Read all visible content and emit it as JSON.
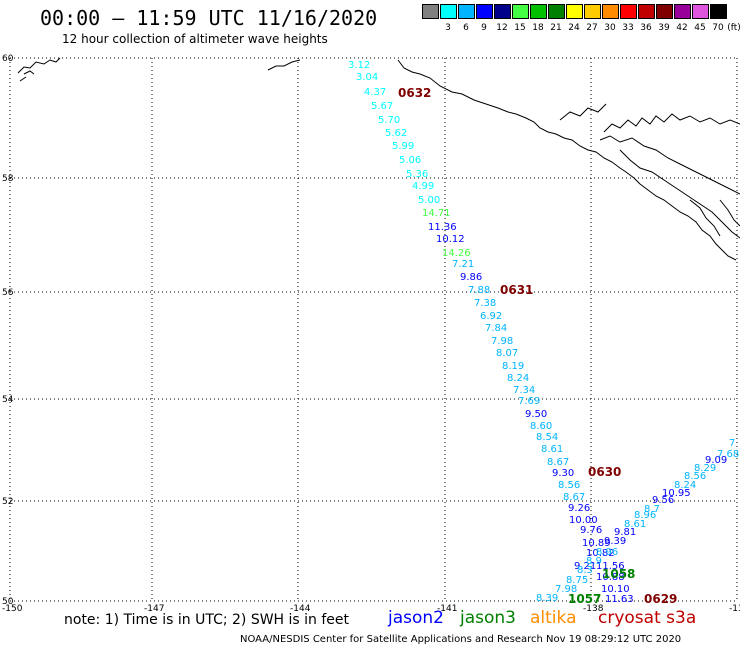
{
  "header": {
    "title": "00:00 – 11:59 UTC 11/16/2020",
    "subtitle": "12 hour collection of altimeter wave heights"
  },
  "color_scale": {
    "unit_label": "(ft)",
    "bins": [
      {
        "label": "",
        "color": "#808080"
      },
      {
        "label": "3",
        "color": "#00ffff"
      },
      {
        "label": "6",
        "color": "#00b4ff"
      },
      {
        "label": "9",
        "color": "#0000ff"
      },
      {
        "label": "12",
        "color": "#00008b"
      },
      {
        "label": "15",
        "color": "#44ff44"
      },
      {
        "label": "18",
        "color": "#00c000"
      },
      {
        "label": "21",
        "color": "#008000"
      },
      {
        "label": "24",
        "color": "#ffff00"
      },
      {
        "label": "27",
        "color": "#ffcc00"
      },
      {
        "label": "30",
        "color": "#ff8c00"
      },
      {
        "label": "33",
        "color": "#ff0000"
      },
      {
        "label": "36",
        "color": "#c00000"
      },
      {
        "label": "39",
        "color": "#800000"
      },
      {
        "label": "42",
        "color": "#990099"
      },
      {
        "label": "45",
        "color": "#dd55dd"
      },
      {
        "label": "70",
        "color": "#000000"
      }
    ]
  },
  "axes": {
    "lat_ticks": [
      "60",
      "58",
      "56",
      "54",
      "52",
      "50"
    ],
    "lon_ticks": [
      "-150",
      "-147",
      "-144",
      "-141",
      "-138",
      "-13"
    ]
  },
  "track_times": [
    {
      "label": "0632",
      "color": "#800000"
    },
    {
      "label": "0631",
      "color": "#800000"
    },
    {
      "label": "0630",
      "color": "#800000"
    },
    {
      "label": "0629",
      "color": "#800000"
    },
    {
      "label": "1057",
      "color": "#008000"
    },
    {
      "label": "1058",
      "color": "#008000"
    }
  ],
  "wave_heights_track1": [
    {
      "v": "3.12",
      "c": "#00ffff"
    },
    {
      "v": "3.04",
      "c": "#00ffff"
    },
    {
      "v": "4.37",
      "c": "#00ffff"
    },
    {
      "v": "5.67",
      "c": "#00ffff"
    },
    {
      "v": "5.70",
      "c": "#00ffff"
    },
    {
      "v": "5.62",
      "c": "#00ffff"
    },
    {
      "v": "5.99",
      "c": "#00ffff"
    },
    {
      "v": "5.06",
      "c": "#00ffff"
    },
    {
      "v": "5.36",
      "c": "#00ffff"
    },
    {
      "v": "4.99",
      "c": "#00ffff"
    },
    {
      "v": "5.00",
      "c": "#00ffff"
    },
    {
      "v": "14.71",
      "c": "#44ff44"
    },
    {
      "v": "11.36",
      "c": "#0000ff"
    },
    {
      "v": "10.12",
      "c": "#0000ff"
    },
    {
      "v": "14.26",
      "c": "#44ff44"
    },
    {
      "v": "7.21",
      "c": "#00b4ff"
    },
    {
      "v": "9.86",
      "c": "#0000ff"
    },
    {
      "v": "7.88",
      "c": "#00b4ff"
    },
    {
      "v": "7.38",
      "c": "#00b4ff"
    },
    {
      "v": "6.92",
      "c": "#00b4ff"
    },
    {
      "v": "7.84",
      "c": "#00b4ff"
    },
    {
      "v": "7.98",
      "c": "#00b4ff"
    },
    {
      "v": "8.07",
      "c": "#00b4ff"
    },
    {
      "v": "8.19",
      "c": "#00b4ff"
    },
    {
      "v": "8.24",
      "c": "#00b4ff"
    },
    {
      "v": "7.34",
      "c": "#00b4ff"
    },
    {
      "v": "7.69",
      "c": "#00b4ff"
    },
    {
      "v": "9.50",
      "c": "#0000ff"
    },
    {
      "v": "8.60",
      "c": "#00b4ff"
    },
    {
      "v": "8.54",
      "c": "#00b4ff"
    },
    {
      "v": "8.61",
      "c": "#00b4ff"
    },
    {
      "v": "8.67",
      "c": "#00b4ff"
    },
    {
      "v": "9.30",
      "c": "#0000ff"
    },
    {
      "v": "8.56",
      "c": "#00b4ff"
    },
    {
      "v": "8.67",
      "c": "#00b4ff"
    },
    {
      "v": "9.26",
      "c": "#0000ff"
    },
    {
      "v": "10.00",
      "c": "#0000ff"
    },
    {
      "v": "9.76",
      "c": "#0000ff"
    },
    {
      "v": "10.89",
      "c": "#0000ff"
    },
    {
      "v": "10.82",
      "c": "#0000ff"
    },
    {
      "v": "9.21",
      "c": "#0000ff"
    },
    {
      "v": "11.56",
      "c": "#0000ff"
    },
    {
      "v": "10.88",
      "c": "#0000ff"
    },
    {
      "v": "10.10",
      "c": "#0000ff"
    },
    {
      "v": "11.63",
      "c": "#0000ff"
    }
  ],
  "wave_heights_track2": [
    {
      "v": "7",
      "c": "#00b4ff"
    },
    {
      "v": "7.68",
      "c": "#00b4ff"
    },
    {
      "v": "9.09",
      "c": "#0000ff"
    },
    {
      "v": "8.29",
      "c": "#00b4ff"
    },
    {
      "v": "8.56",
      "c": "#00b4ff"
    },
    {
      "v": "8.24",
      "c": "#00b4ff"
    },
    {
      "v": "10.95",
      "c": "#0000ff"
    },
    {
      "v": "9.56",
      "c": "#0000ff"
    },
    {
      "v": "8.7",
      "c": "#00b4ff"
    },
    {
      "v": "8.96",
      "c": "#00b4ff"
    },
    {
      "v": "8.61",
      "c": "#00b4ff"
    },
    {
      "v": "9.81",
      "c": "#0000ff"
    },
    {
      "v": "9.39",
      "c": "#0000ff"
    },
    {
      "v": "8.96",
      "c": "#00b4ff"
    },
    {
      "v": "8.9",
      "c": "#00b4ff"
    },
    {
      "v": "8.3",
      "c": "#00b4ff"
    },
    {
      "v": "8.75",
      "c": "#00b4ff"
    },
    {
      "v": "7.98",
      "c": "#00b4ff"
    },
    {
      "v": "8.39",
      "c": "#00b4ff"
    }
  ],
  "note": "note: 1) Time is in UTC; 2) SWH is in feet",
  "satellites": [
    {
      "name": "jason2",
      "color": "#0000ff"
    },
    {
      "name": "jason3",
      "color": "#008000"
    },
    {
      "name": "altika",
      "color": "#ff8c00"
    },
    {
      "name": "cryosat s3a",
      "color": "#c00000"
    }
  ],
  "footer": "NOAA/NESDIS Center for Satellite Applications and Research    Nov 19 08:29:12 UTC 2020"
}
